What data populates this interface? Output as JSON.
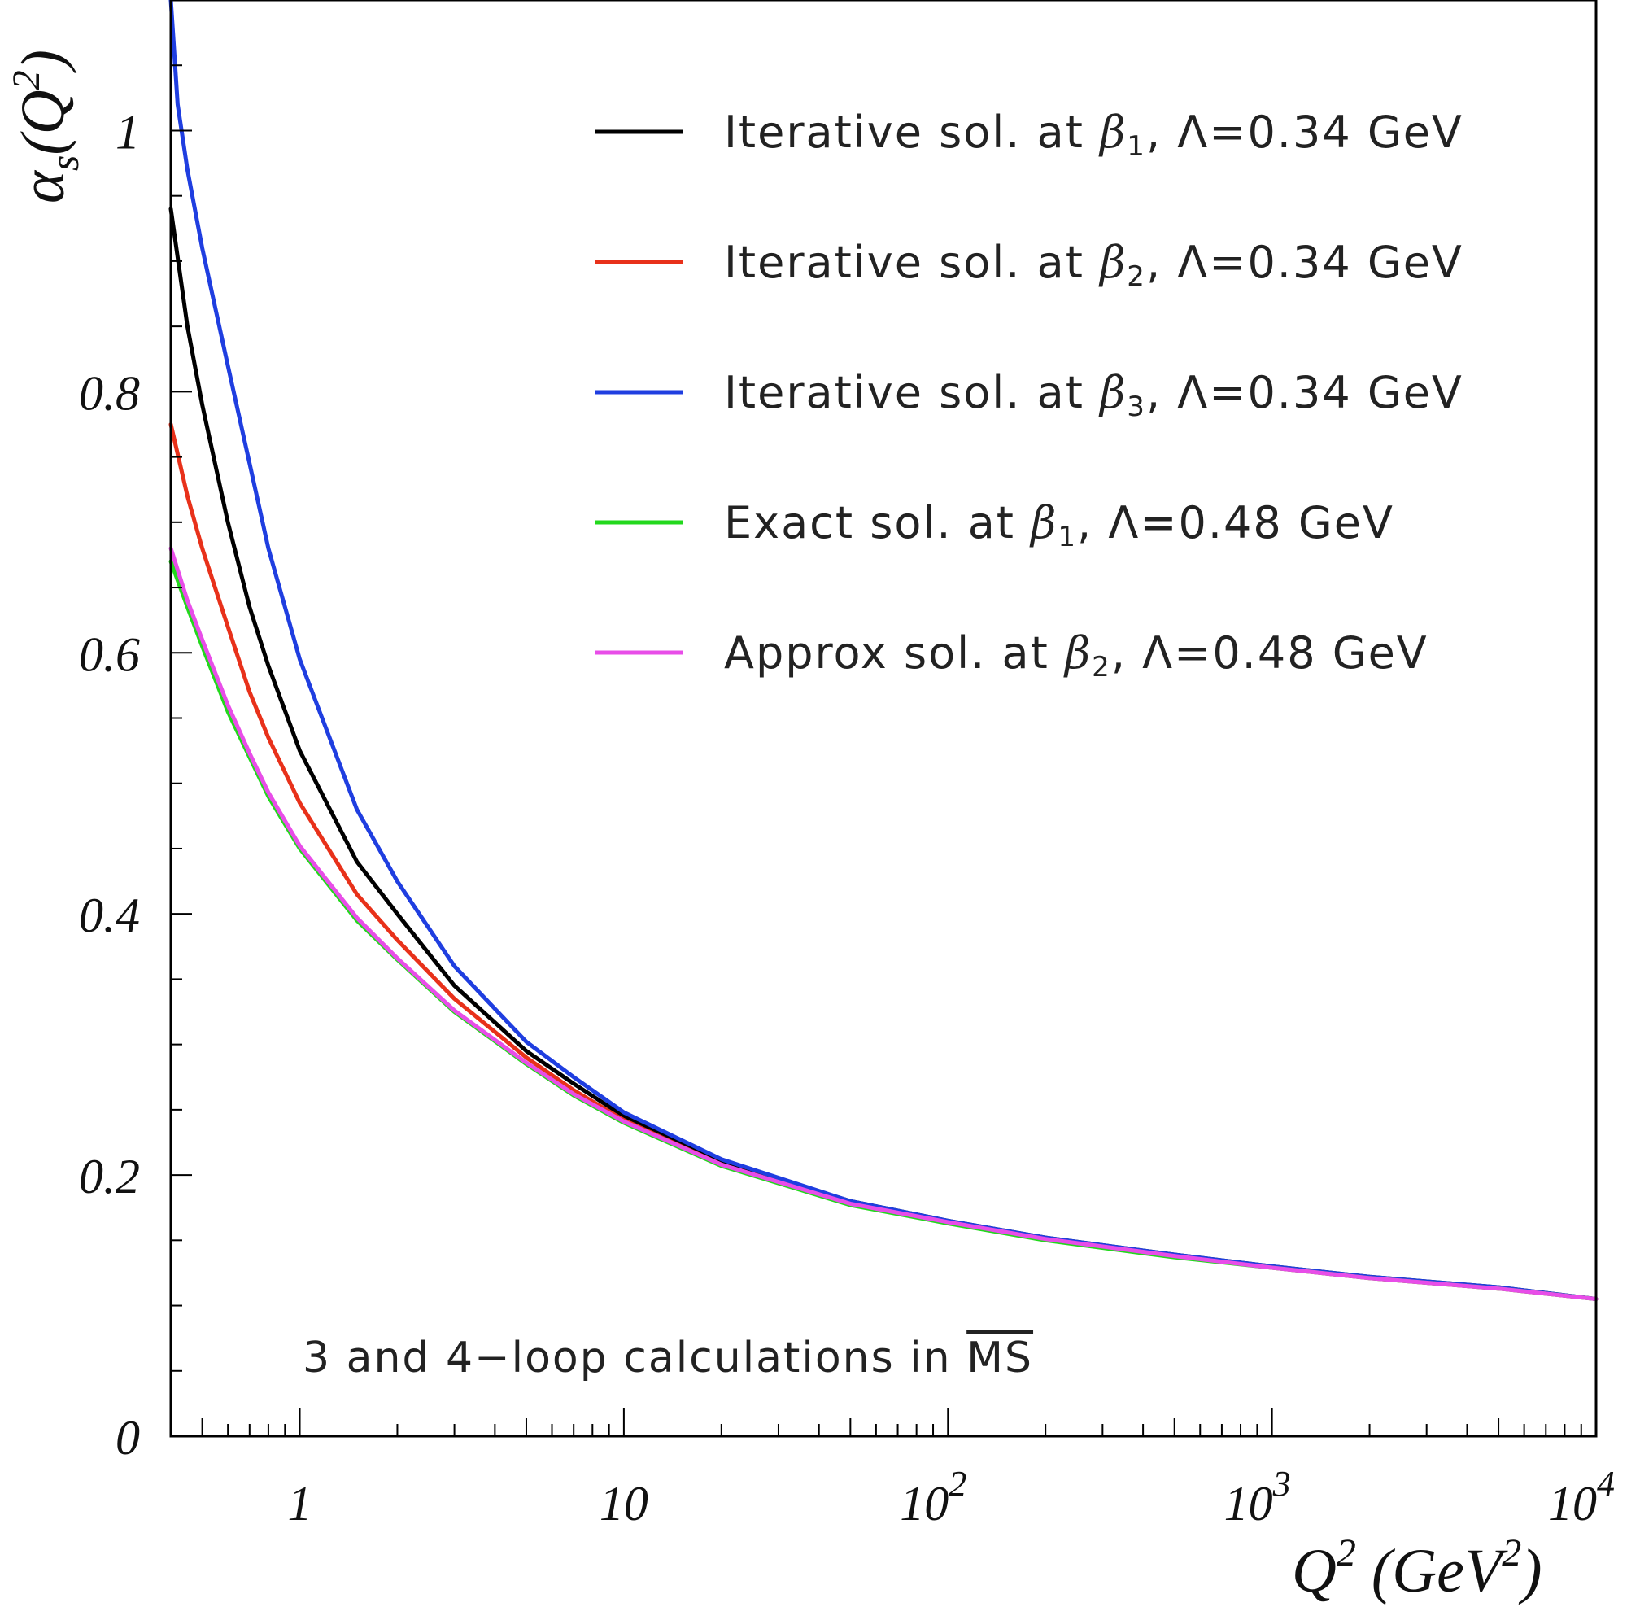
{
  "chart_data": {
    "type": "line",
    "xscale": "log",
    "xlim": [
      0.4,
      10000
    ],
    "ylim": [
      0,
      1.1
    ],
    "xlabel": "Q^2 (GeV^2)",
    "ylabel": "α_s(Q^2)",
    "x_ticks": [
      {
        "value": 1,
        "base": "1",
        "exp": ""
      },
      {
        "value": 10,
        "base": "10",
        "exp": ""
      },
      {
        "value": 100,
        "base": "10",
        "exp": "2"
      },
      {
        "value": 1000,
        "base": "10",
        "exp": "3"
      },
      {
        "value": 10000,
        "base": "10",
        "exp": "4"
      }
    ],
    "y_ticks": [
      {
        "value": 0,
        "label": "0"
      },
      {
        "value": 0.2,
        "label": "0.2"
      },
      {
        "value": 0.4,
        "label": "0.4"
      },
      {
        "value": 0.6,
        "label": "0.6"
      },
      {
        "value": 0.8,
        "label": "0.8"
      },
      {
        "value": 1.0,
        "label": "1"
      }
    ],
    "legend_position": "top-right",
    "annotation": "3 and 4−loop calculations in ",
    "annotation_overlined": "MS",
    "series": [
      {
        "name": "Iterative sol. at β1, Λ=0.34 GeV",
        "legend_pre": "Iterative sol. at ",
        "legend_sub": "1",
        "legend_post": ", Λ=0.34 GeV",
        "color": "#000000",
        "x": [
          0.4,
          0.45,
          0.5,
          0.6,
          0.7,
          0.8,
          1,
          1.5,
          2,
          3,
          5,
          7,
          10,
          20,
          50,
          100,
          200,
          500,
          1000,
          2000,
          5000,
          10000
        ],
        "y": [
          0.94,
          0.85,
          0.79,
          0.7,
          0.635,
          0.59,
          0.525,
          0.44,
          0.4,
          0.345,
          0.295,
          0.27,
          0.245,
          0.21,
          0.18,
          0.165,
          0.152,
          0.139,
          0.13,
          0.122,
          0.114,
          0.105
        ]
      },
      {
        "name": "Iterative sol. at β2, Λ=0.34 GeV",
        "legend_pre": "Iterative sol. at ",
        "legend_sub": "2",
        "legend_post": ", Λ=0.34 GeV",
        "color": "#e8311a",
        "x": [
          0.4,
          0.45,
          0.5,
          0.6,
          0.7,
          0.8,
          1,
          1.5,
          2,
          3,
          5,
          7,
          10,
          20,
          50,
          100,
          200,
          500,
          1000,
          2000,
          5000,
          10000
        ],
        "y": [
          0.775,
          0.72,
          0.68,
          0.62,
          0.57,
          0.535,
          0.485,
          0.415,
          0.38,
          0.335,
          0.29,
          0.265,
          0.242,
          0.208,
          0.178,
          0.164,
          0.151,
          0.138,
          0.129,
          0.121,
          0.113,
          0.105
        ]
      },
      {
        "name": "Iterative sol. at β3, Λ=0.34 GeV",
        "legend_pre": "Iterative sol. at ",
        "legend_sub": "3",
        "legend_post": ", Λ=0.34 GeV",
        "color": "#1f3ee0",
        "x": [
          0.4,
          0.42,
          0.45,
          0.5,
          0.6,
          0.7,
          0.8,
          1,
          1.5,
          2,
          3,
          5,
          7,
          10,
          20,
          50,
          100,
          200,
          500,
          1000,
          2000,
          5000,
          10000
        ],
        "y": [
          1.1,
          1.02,
          0.97,
          0.91,
          0.82,
          0.745,
          0.68,
          0.595,
          0.48,
          0.425,
          0.36,
          0.302,
          0.275,
          0.248,
          0.212,
          0.18,
          0.165,
          0.152,
          0.139,
          0.13,
          0.122,
          0.114,
          0.105
        ]
      },
      {
        "name": "Exact sol. at β1, Λ=0.48 GeV",
        "legend_pre": "Exact sol. at ",
        "legend_sub": "1",
        "legend_post": ", Λ=0.48 GeV",
        "color": "#22d81c",
        "x": [
          0.4,
          0.45,
          0.5,
          0.6,
          0.7,
          0.8,
          1,
          1.5,
          2,
          3,
          5,
          7,
          10,
          20,
          50,
          100,
          200,
          500,
          1000,
          2000,
          5000,
          10000
        ],
        "y": [
          0.67,
          0.635,
          0.605,
          0.555,
          0.52,
          0.49,
          0.45,
          0.395,
          0.365,
          0.325,
          0.285,
          0.261,
          0.24,
          0.207,
          0.177,
          0.163,
          0.15,
          0.137,
          0.129,
          0.121,
          0.113,
          0.105
        ]
      },
      {
        "name": "Approx sol. at β2, Λ=0.48 GeV",
        "legend_pre": "Approx sol. at ",
        "legend_sub": "2",
        "legend_post": ", Λ=0.48 GeV",
        "color": "#e84de8",
        "x": [
          0.4,
          0.45,
          0.5,
          0.6,
          0.7,
          0.8,
          1,
          1.5,
          2,
          3,
          5,
          7,
          10,
          20,
          50,
          100,
          200,
          500,
          1000,
          2000,
          5000,
          10000
        ],
        "y": [
          0.68,
          0.64,
          0.61,
          0.56,
          0.523,
          0.493,
          0.452,
          0.397,
          0.366,
          0.326,
          0.286,
          0.262,
          0.241,
          0.208,
          0.178,
          0.164,
          0.151,
          0.138,
          0.129,
          0.121,
          0.113,
          0.105
        ]
      }
    ]
  }
}
